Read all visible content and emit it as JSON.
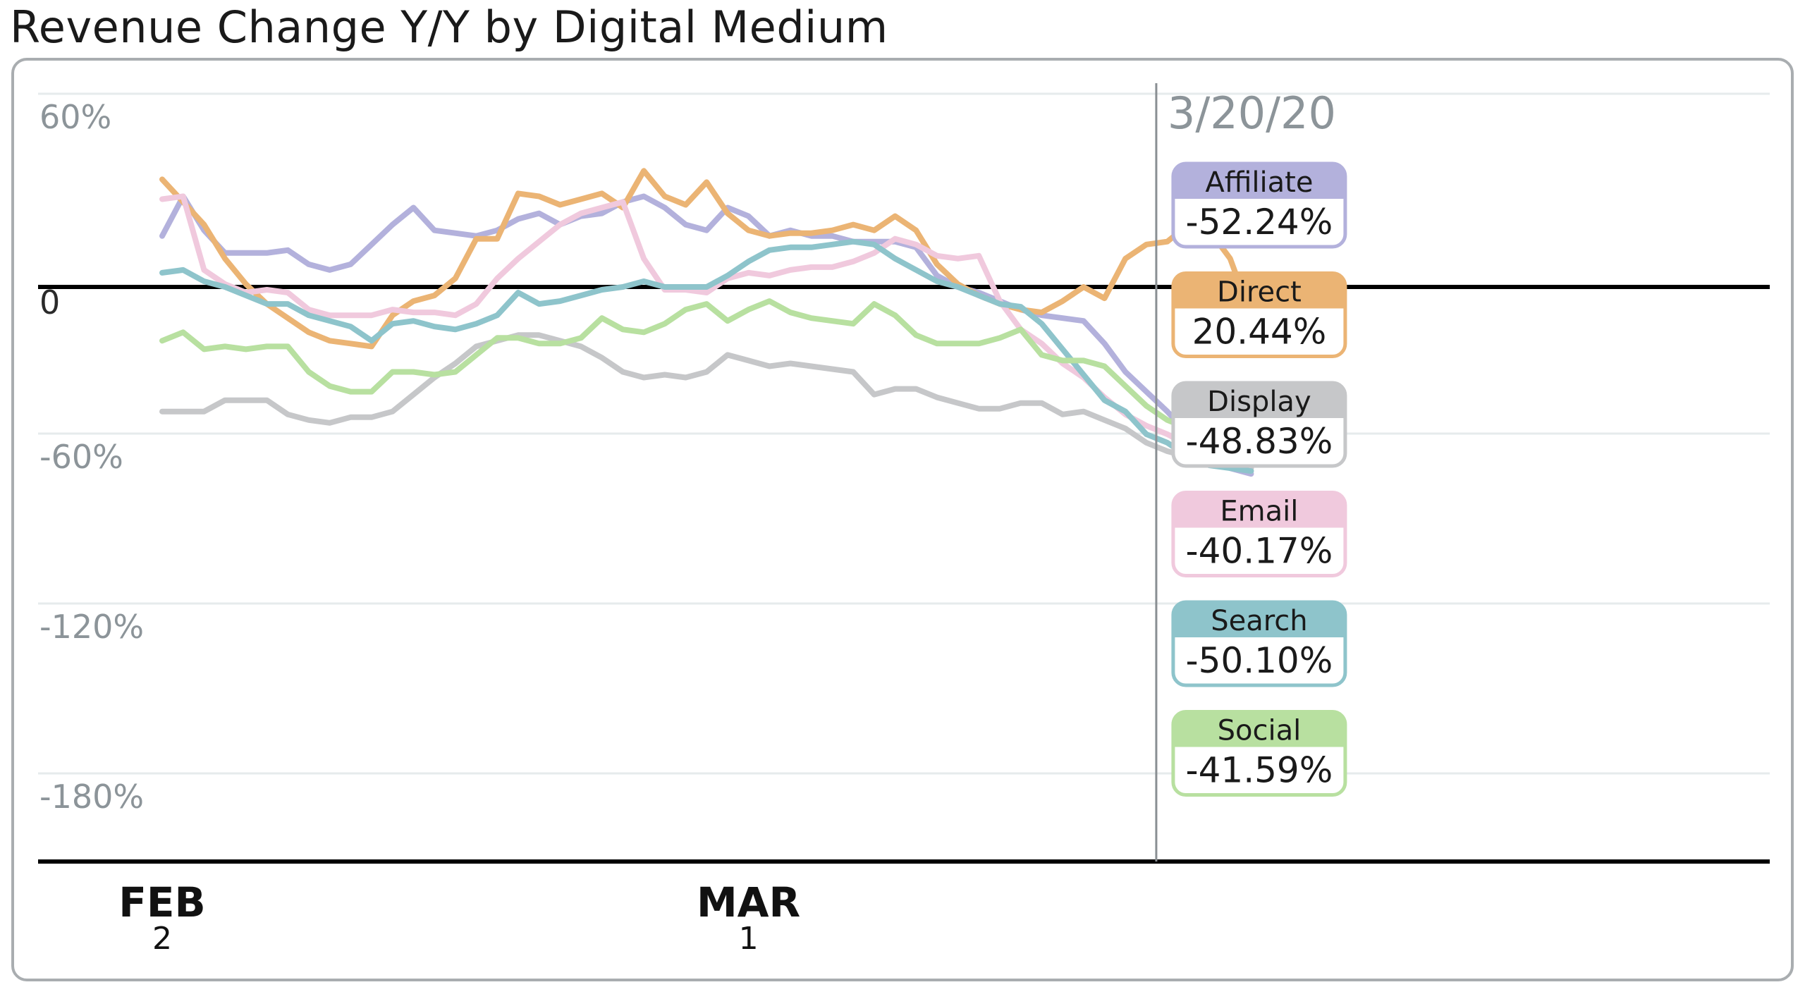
{
  "title": "Revenue Change Y/Y by Digital Medium",
  "chart_data": {
    "type": "line",
    "title": "Revenue Change Y/Y by Digital Medium",
    "xlabel": "",
    "ylabel": "",
    "ylim": [
      -200,
      65
    ],
    "y_ticks": [
      {
        "value": 60,
        "label": "60%"
      },
      {
        "value": 0,
        "label": "0"
      },
      {
        "value": -60,
        "label": "-60%"
      },
      {
        "value": -120,
        "label": "-120%"
      },
      {
        "value": -180,
        "label": "-180%"
      }
    ],
    "x_ticks": [
      {
        "month": "FEB",
        "day": "2"
      },
      {
        "month": "MAR",
        "day": "1"
      }
    ],
    "highlight_date": "3/20/20",
    "grid": true,
    "x": [
      "2/2",
      "2/3",
      "2/4",
      "2/5",
      "2/6",
      "2/7",
      "2/8",
      "2/9",
      "2/10",
      "2/11",
      "2/12",
      "2/13",
      "2/14",
      "2/15",
      "2/16",
      "2/17",
      "2/18",
      "2/19",
      "2/20",
      "2/21",
      "2/22",
      "2/23",
      "2/24",
      "2/25",
      "2/26",
      "2/27",
      "2/28",
      "2/29",
      "3/1",
      "3/2",
      "3/3",
      "3/4",
      "3/5",
      "3/6",
      "3/7",
      "3/8",
      "3/9",
      "3/10",
      "3/11",
      "3/12",
      "3/13",
      "3/14",
      "3/15",
      "3/16",
      "3/17",
      "3/18",
      "3/19",
      "3/20",
      "3/21",
      "3/22",
      "3/23",
      "3/24",
      "3/25"
    ],
    "series": [
      {
        "name": "Affiliate",
        "color": "#b3b1dc",
        "value_label": "-52.24%",
        "values": [
          18,
          32,
          20,
          12,
          12,
          12,
          13,
          8,
          6,
          8,
          15,
          22,
          28,
          20,
          19,
          18,
          20,
          24,
          26,
          22,
          25,
          26,
          30,
          32,
          28,
          22,
          20,
          28,
          25,
          18,
          20,
          18,
          18,
          16,
          16,
          16,
          14,
          4,
          0,
          -2,
          -5,
          -8,
          -10,
          -11,
          -12,
          -20,
          -30,
          -37,
          -44,
          -52,
          -60,
          -64,
          -66
        ]
      },
      {
        "name": "Direct",
        "color": "#ebb474",
        "value_label": "20.44%",
        "values": [
          38,
          30,
          22,
          10,
          1,
          -6,
          -11,
          -16,
          -19,
          -20,
          -21,
          -10,
          -5,
          -3,
          3,
          17,
          17,
          33,
          32,
          29,
          31,
          33,
          28,
          41,
          32,
          29,
          37,
          26,
          20,
          18,
          19,
          19,
          20,
          22,
          20,
          25,
          20,
          8,
          1,
          -3,
          -6,
          -8,
          -9,
          -5,
          0,
          -4,
          10,
          15,
          16,
          22,
          20,
          10,
          -10
        ]
      },
      {
        "name": "Display",
        "color": "#c6c7c9",
        "value_label": "-48.83%",
        "values": [
          -44,
          -44,
          -44,
          -40,
          -40,
          -40,
          -45,
          -47,
          -48,
          -46,
          -46,
          -44,
          -38,
          -32,
          -27,
          -21,
          -19,
          -17,
          -17,
          -19,
          -21,
          -25,
          -30,
          -32,
          -31,
          -32,
          -30,
          -24,
          -26,
          -28,
          -27,
          -28,
          -29,
          -30,
          -38,
          -36,
          -36,
          -39,
          -41,
          -43,
          -43,
          -41,
          -41,
          -45,
          -44,
          -47,
          -50,
          -55,
          -58,
          -60,
          -62,
          -62,
          -64
        ]
      },
      {
        "name": "Email",
        "color": "#f0c9dd",
        "value_label": "-40.17%",
        "values": [
          31,
          32,
          6,
          1,
          -2,
          -1,
          -2,
          -8,
          -10,
          -10,
          -10,
          -8,
          -9,
          -9,
          -10,
          -6,
          3,
          10,
          16,
          22,
          26,
          28,
          30,
          10,
          -1,
          -1,
          -2,
          3,
          5,
          4,
          6,
          7,
          7,
          9,
          12,
          17,
          15,
          11,
          10,
          11,
          -5,
          -15,
          -20,
          -27,
          -32,
          -39,
          -45,
          -49,
          -52,
          -56,
          -60,
          -63,
          -65
        ]
      },
      {
        "name": "Search",
        "color": "#8ec4cb",
        "value_label": "-50.10%",
        "values": [
          5,
          6,
          2,
          0,
          -3,
          -6,
          -6,
          -10,
          -12,
          -14,
          -19,
          -13,
          -12,
          -14,
          -15,
          -13,
          -10,
          -2,
          -6,
          -5,
          -3,
          -1,
          0,
          2,
          0,
          0,
          0,
          4,
          9,
          13,
          14,
          14,
          15,
          16,
          15,
          10,
          6,
          2,
          0,
          -3,
          -6,
          -7,
          -13,
          -22,
          -31,
          -40,
          -44,
          -52,
          -55,
          -60,
          -63,
          -64,
          -65
        ]
      },
      {
        "name": "Social",
        "color": "#b8e0a0",
        "value_label": "-41.59%",
        "values": [
          -19,
          -16,
          -22,
          -21,
          -22,
          -21,
          -21,
          -30,
          -35,
          -37,
          -37,
          -30,
          -30,
          -31,
          -30,
          -24,
          -18,
          -18,
          -20,
          -20,
          -18,
          -11,
          -15,
          -16,
          -13,
          -8,
          -6,
          -12,
          -8,
          -5,
          -9,
          -11,
          -12,
          -13,
          -6,
          -10,
          -17,
          -20,
          -20,
          -20,
          -18,
          -15,
          -24,
          -26,
          -26,
          -28,
          -35,
          -42,
          -47,
          -50,
          -53,
          -58,
          -62
        ]
      }
    ]
  }
}
